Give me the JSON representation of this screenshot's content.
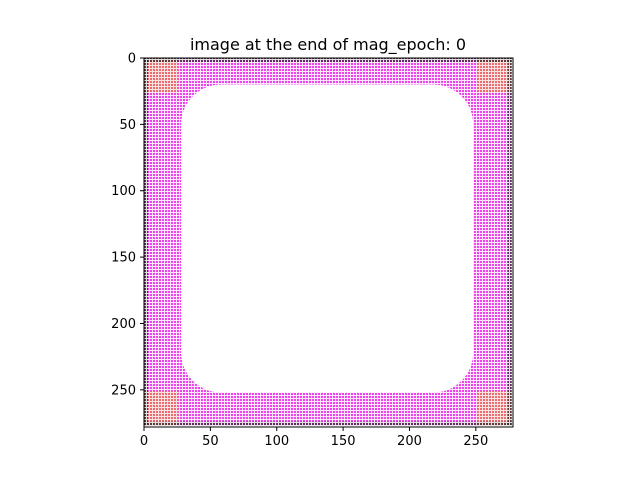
{
  "chart_data": {
    "type": "heatmap",
    "title": "image at the end of mag_epoch: 0",
    "xlabel": "",
    "ylabel": "",
    "image_size": [
      278,
      278
    ],
    "xlim": [
      0,
      278
    ],
    "ylim": [
      278,
      0
    ],
    "x_ticks": [
      0,
      50,
      100,
      150,
      200,
      250
    ],
    "y_ticks": [
      0,
      50,
      100,
      150,
      200,
      250
    ],
    "x_tick_labels": [
      "0",
      "50",
      "100",
      "150",
      "200",
      "250"
    ],
    "y_tick_labels": [
      "0",
      "50",
      "100",
      "150",
      "200",
      "250"
    ],
    "grid": false,
    "content": {
      "background_color": "#ffffff",
      "frame_color": "#ee44ee",
      "corner_color": "#e8735a",
      "edge_dot_color": "#222222",
      "frame_outer_extent": [
        0,
        0,
        277,
        277
      ],
      "hole_extent": [
        28,
        20,
        248,
        252
      ],
      "hole_corner_radius": 30,
      "corner_patch_size": 26
    }
  }
}
